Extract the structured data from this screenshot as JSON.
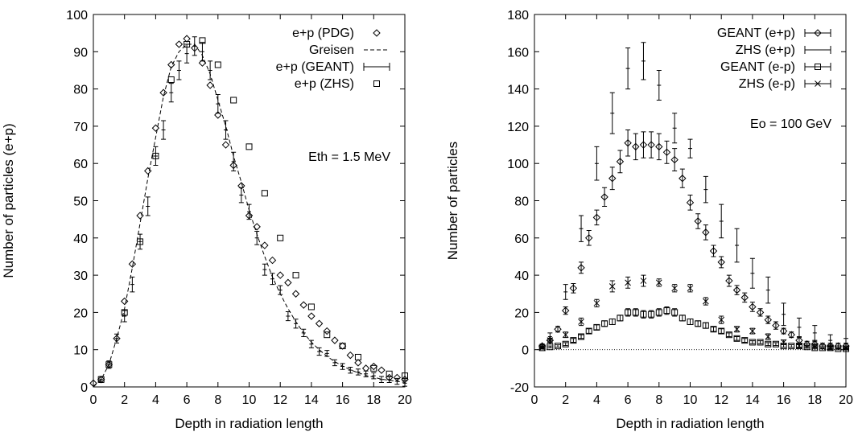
{
  "chart_data": [
    {
      "type": "scatter",
      "title": "",
      "xlabel": "Depth in radiation length",
      "ylabel": "Number of particles (e+p)",
      "xlim": [
        0,
        20
      ],
      "ylim": [
        0,
        100
      ],
      "xticks": [
        "0",
        "2",
        "4",
        "6",
        "8",
        "10",
        "12",
        "14",
        "16",
        "18",
        "20"
      ],
      "yticks": [
        "0",
        "10",
        "20",
        "30",
        "40",
        "50",
        "60",
        "70",
        "80",
        "90",
        "100"
      ],
      "annotation": "Eth = 1.5 MeV",
      "legend_position": "top-right",
      "grid": false,
      "series": [
        {
          "name": "e+p (PDG)",
          "marker": "diamond",
          "x": [
            0,
            0.5,
            1,
            1.5,
            2,
            2.5,
            3,
            3.5,
            4,
            4.5,
            5,
            5.5,
            6,
            6.5,
            7,
            7.5,
            8,
            8.5,
            9,
            9.5,
            10,
            10.5,
            11,
            11.5,
            12,
            12.5,
            13,
            13.5,
            14,
            14.5,
            15,
            15.5,
            16,
            16.5,
            17,
            17.5,
            18,
            18.5,
            19,
            19.5,
            20
          ],
          "y": [
            1,
            2,
            6,
            13,
            23,
            33,
            46,
            58,
            69.5,
            79,
            86.5,
            92,
            93.5,
            91,
            87,
            81,
            73,
            65,
            59.5,
            54,
            46,
            43,
            38,
            34,
            30,
            28,
            25,
            22,
            19,
            17,
            15,
            12.5,
            11,
            8.5,
            6.5,
            5,
            5.5,
            4.5,
            2.5,
            2.5,
            2
          ]
        },
        {
          "name": "Greisen",
          "style": "dashed",
          "x": [
            0,
            0.5,
            1,
            1.5,
            2,
            2.5,
            3,
            3.5,
            4,
            4.5,
            5,
            5.5,
            6,
            6.5,
            7,
            7.5,
            8,
            8.5,
            9,
            9.5,
            10,
            10.5,
            11,
            11.5,
            12,
            12.5,
            13,
            13.5,
            14,
            14.5,
            15,
            15.5,
            16,
            16.5,
            17,
            17.5,
            18,
            18.5,
            19,
            19.5,
            20
          ],
          "y": [
            0,
            2,
            6,
            13,
            21,
            32,
            44,
            56,
            67,
            78,
            86,
            90,
            92,
            92,
            89,
            84,
            77,
            70,
            62,
            55,
            47.5,
            41,
            35,
            29.5,
            25,
            21,
            17.5,
            14.5,
            12,
            10,
            8.2,
            6.8,
            5.6,
            4.6,
            3.8,
            3.1,
            2.6,
            2.1,
            1.8,
            1.5,
            1.2
          ]
        },
        {
          "name": "e+p (GEANT)",
          "marker": "errorbar",
          "x": [
            0.5,
            1,
            1.5,
            2,
            2.5,
            3,
            3.5,
            4,
            4.5,
            5,
            5.5,
            6,
            6.5,
            7,
            7.5,
            8,
            8.5,
            9,
            9.5,
            10,
            10.5,
            11,
            11.5,
            12,
            12.5,
            13,
            13.5,
            14,
            14.5,
            15,
            15.5,
            16,
            16.5,
            17,
            17.5,
            18,
            18.5,
            19,
            19.5,
            20
          ],
          "y": [
            2,
            6,
            13,
            19,
            27.5,
            39,
            48.5,
            62,
            69,
            79,
            85,
            89.5,
            91.5,
            90,
            85,
            76,
            69,
            60.5,
            51.5,
            47,
            40,
            31.5,
            29,
            26,
            19,
            17,
            14.5,
            11.5,
            9.5,
            9,
            6.5,
            5.5,
            4.5,
            4,
            3.5,
            3,
            2,
            2,
            1.5,
            1
          ],
          "err": [
            0.8,
            1,
            1.2,
            1.5,
            2,
            2,
            2.5,
            2.5,
            2.5,
            2.5,
            2.5,
            2.5,
            2.5,
            2.5,
            2.5,
            2.5,
            2.5,
            2.5,
            2,
            2,
            1.8,
            1.5,
            1.5,
            1.2,
            1.2,
            1.2,
            1,
            1,
            1,
            0.8,
            0.8,
            0.8,
            0.8,
            0.8,
            0.8,
            0.8,
            0.8,
            0.8,
            0.8,
            0.8
          ]
        },
        {
          "name": "e+p (ZHS)",
          "marker": "square",
          "x": [
            0.5,
            1,
            2,
            3,
            4,
            5,
            6,
            7,
            8,
            9,
            10,
            11,
            12,
            13,
            14,
            15,
            16,
            17,
            18,
            19,
            20
          ],
          "y": [
            2,
            6,
            20,
            39,
            62,
            82.5,
            92,
            93,
            86.5,
            77,
            64.5,
            52,
            40,
            30,
            21.5,
            14,
            11,
            8,
            5,
            3.5,
            3
          ]
        }
      ]
    },
    {
      "type": "scatter",
      "title": "",
      "xlabel": "Depth in radiation length",
      "ylabel": "Number of particles",
      "xlim": [
        0,
        20
      ],
      "ylim": [
        -20,
        180
      ],
      "xticks": [
        "0",
        "2",
        "4",
        "6",
        "8",
        "10",
        "12",
        "14",
        "16",
        "18",
        "20"
      ],
      "yticks": [
        "-20",
        "0",
        "20",
        "40",
        "60",
        "80",
        "100",
        "120",
        "140",
        "160",
        "180"
      ],
      "annotation": "Eo = 100 GeV",
      "legend_position": "top-right",
      "grid": false,
      "series": [
        {
          "name": "GEANT (e+p)",
          "marker": "diamond",
          "x": [
            0.5,
            1,
            1.5,
            2,
            2.5,
            3,
            3.5,
            4,
            4.5,
            5,
            5.5,
            6,
            6.5,
            7,
            7.5,
            8,
            8.5,
            9,
            9.5,
            10,
            10.5,
            11,
            11.5,
            12,
            12.5,
            13,
            13.5,
            14,
            14.5,
            15,
            15.5,
            16,
            16.5,
            17,
            17.5,
            18,
            18.5,
            19,
            19.5,
            20
          ],
          "y": [
            2,
            5,
            11,
            21,
            33,
            44,
            60,
            71,
            82,
            92,
            101,
            111,
            109,
            110,
            110,
            109,
            106,
            102,
            92,
            79,
            69,
            63,
            53,
            47,
            37,
            32,
            28,
            23,
            20,
            16,
            13,
            10,
            8,
            5,
            3,
            3,
            2,
            2,
            2,
            2
          ],
          "err": [
            1,
            1.2,
            1.5,
            2,
            2.5,
            3,
            4,
            4,
            5,
            6,
            6,
            7,
            7,
            7,
            7,
            7,
            6,
            6,
            5,
            4,
            4,
            4,
            3,
            3,
            3,
            2.5,
            2.5,
            2.5,
            2,
            2,
            2,
            1.5,
            1.5,
            1.5,
            1.5,
            1.5,
            1.5,
            1.5,
            1.5,
            1.5
          ]
        },
        {
          "name": "ZHS (e+p)",
          "marker": "errorbar",
          "x": [
            0.5,
            1,
            2,
            3,
            4,
            5,
            6,
            7,
            8,
            9,
            10,
            11,
            12,
            13,
            14,
            15,
            16,
            17,
            18,
            19,
            20
          ],
          "y": [
            2,
            7,
            31,
            65,
            100,
            127,
            151,
            155,
            142,
            119,
            108,
            86,
            69,
            56,
            41,
            32,
            19,
            12,
            9,
            5,
            3
          ],
          "err": [
            1,
            2,
            4,
            7,
            9,
            11,
            11,
            10,
            8,
            8,
            5,
            7,
            9,
            9,
            8,
            7,
            6,
            5,
            4,
            3,
            3
          ]
        },
        {
          "name": "GEANT (e-p)",
          "marker": "square",
          "x": [
            0.5,
            1,
            1.5,
            2,
            2.5,
            3,
            3.5,
            4,
            4.5,
            5,
            5.5,
            6,
            6.5,
            7,
            7.5,
            8,
            8.5,
            9,
            9.5,
            10,
            10.5,
            11,
            11.5,
            12,
            12.5,
            13,
            13.5,
            14,
            14.5,
            15,
            15.5,
            16,
            16.5,
            17,
            17.5,
            18,
            18.5,
            19,
            19.5,
            20
          ],
          "y": [
            1,
            1.5,
            2,
            3,
            5,
            7,
            10,
            12,
            14,
            15,
            17,
            20,
            20,
            19,
            19,
            20,
            21,
            20,
            17,
            15,
            14,
            13,
            11,
            10,
            8,
            6,
            5,
            4,
            4,
            3,
            3,
            2,
            2,
            2,
            1.5,
            1,
            1,
            1,
            0.5,
            0.5
          ],
          "err": [
            0.5,
            0.5,
            0.6,
            0.8,
            1,
            1,
            1.2,
            1.3,
            1.5,
            1.5,
            1.5,
            2,
            2,
            2,
            2,
            2,
            2,
            2,
            1.5,
            1.5,
            1.5,
            1.5,
            1.2,
            1.2,
            1,
            1,
            1,
            0.8,
            0.8,
            0.8,
            0.8,
            0.7,
            0.7,
            0.7,
            0.7,
            0.6,
            0.6,
            0.6,
            0.6,
            0.6
          ]
        },
        {
          "name": "ZHS (e-p)",
          "marker": "cross",
          "x": [
            0.5,
            1,
            2,
            3,
            4,
            5,
            6,
            7,
            8,
            9,
            10,
            11,
            12,
            13,
            14,
            15,
            16,
            17,
            18,
            19,
            20
          ],
          "y": [
            1,
            5,
            8,
            15,
            25,
            34,
            36,
            37,
            36,
            33,
            33,
            26,
            16,
            11,
            10,
            7,
            4,
            2,
            2,
            1,
            1
          ],
          "err": [
            0.5,
            1,
            1.5,
            2,
            2,
            3,
            3,
            3,
            2,
            2,
            2,
            2,
            2,
            1.5,
            1.5,
            1.5,
            1.2,
            1,
            1,
            1,
            1
          ]
        }
      ]
    }
  ]
}
